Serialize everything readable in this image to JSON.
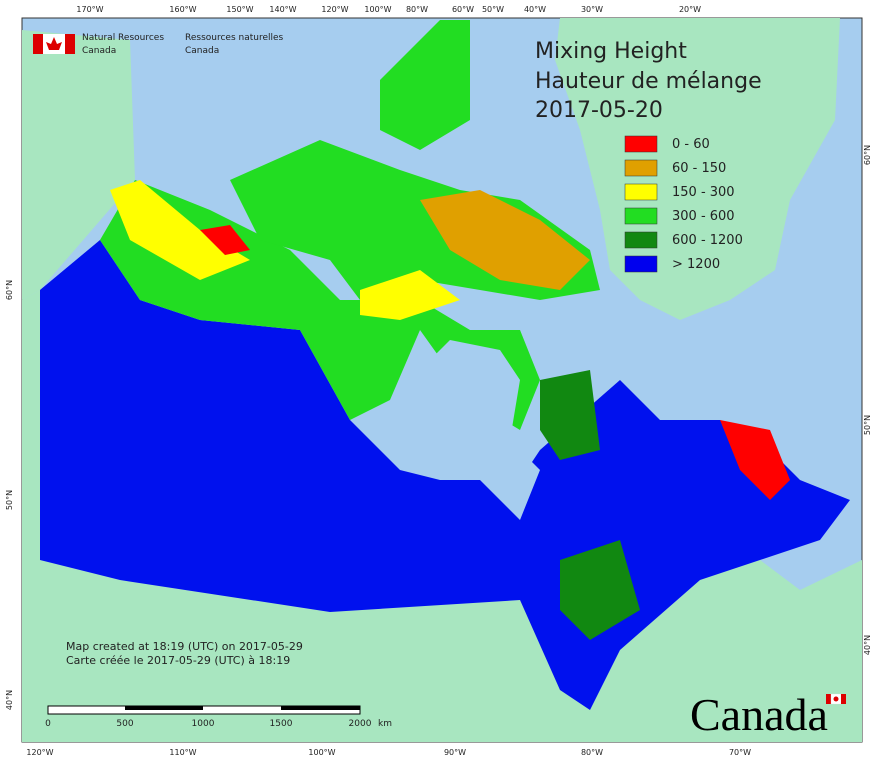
{
  "agency": {
    "en": [
      "Natural Resources",
      "Canada"
    ],
    "fr": [
      "Ressources naturelles",
      "Canada"
    ]
  },
  "title": [
    "Mixing Height",
    "Hauteur de mélange",
    "2017-05-20"
  ],
  "legend": [
    {
      "label": "0 - 60",
      "color": "#ff0000"
    },
    {
      "label": "60 - 150",
      "color": "#e0a000"
    },
    {
      "label": "150 - 300",
      "color": "#ffff00"
    },
    {
      "label": "300 - 600",
      "color": "#22dd22"
    },
    {
      "label": "600 - 1200",
      "color": "#118811"
    },
    {
      "label": "> 1200",
      "color": "#0000ee"
    }
  ],
  "credits": [
    "Map created at 18:19 (UTC) on 2017-05-29",
    "Carte créée le 2017-05-29 (UTC) à 18:19"
  ],
  "scale_bar": {
    "labels": [
      "0",
      "500",
      "1000",
      "1500",
      "2000"
    ],
    "unit": "km"
  },
  "top_axis": [
    "170°W",
    "160°W",
    "150°W",
    "140°W",
    "120°W",
    "100°W",
    "80°W",
    "60°W",
    "50°W",
    "40°W",
    "30°W",
    "20°W"
  ],
  "bottom_axis": [
    "120°W",
    "110°W",
    "100°W",
    "90°W",
    "80°W",
    "70°W"
  ],
  "left_axis": [
    "60°N",
    "50°N",
    "40°N"
  ],
  "right_axis": [
    "60°N",
    "50°N",
    "40°N"
  ],
  "wordmark": "Canada"
}
